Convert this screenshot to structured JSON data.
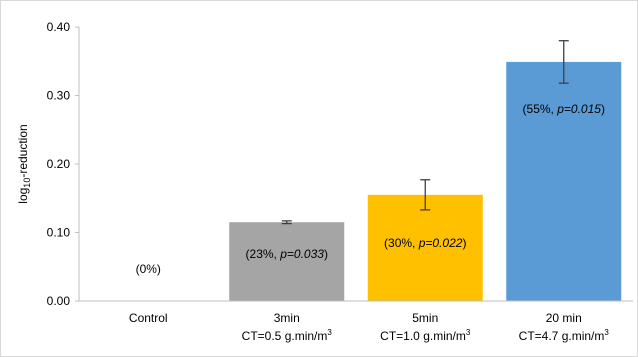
{
  "chart_data": {
    "type": "bar",
    "ylabel": {
      "base": "log",
      "sub": "10",
      "rest": "-reduction"
    },
    "ylim": [
      0,
      0.4
    ],
    "yticks": [
      "0.00",
      "0.10",
      "0.20",
      "0.30",
      "0.40"
    ],
    "grid": false,
    "categories": [
      {
        "line1": "Control",
        "line2": null
      },
      {
        "line1": "3min",
        "line2": {
          "text": "CT=0.5 g.min/m",
          "sup": "3"
        }
      },
      {
        "line1": "5min",
        "line2": {
          "text": "CT=1.0 g.min/m",
          "sup": "3"
        }
      },
      {
        "line1": "20 min",
        "line2": {
          "text": "CT=4.7 g.min/m",
          "sup": "3"
        }
      }
    ],
    "values": [
      0,
      0.115,
      0.155,
      0.349
    ],
    "error": [
      null,
      0.002,
      0.022,
      0.031
    ],
    "colors": [
      "#ffffff",
      "#a5a5a5",
      "#ffc000",
      "#5b9bd5"
    ],
    "labels": [
      {
        "pct": "(0%)",
        "p": null
      },
      {
        "pct": "(23%, ",
        "p": "p=0.033",
        "close": ")"
      },
      {
        "pct": "(30%, ",
        "p": "p=0.022",
        "close": ")"
      },
      {
        "pct": "(55%, ",
        "p": "p=0.015",
        "close": ")"
      }
    ]
  }
}
